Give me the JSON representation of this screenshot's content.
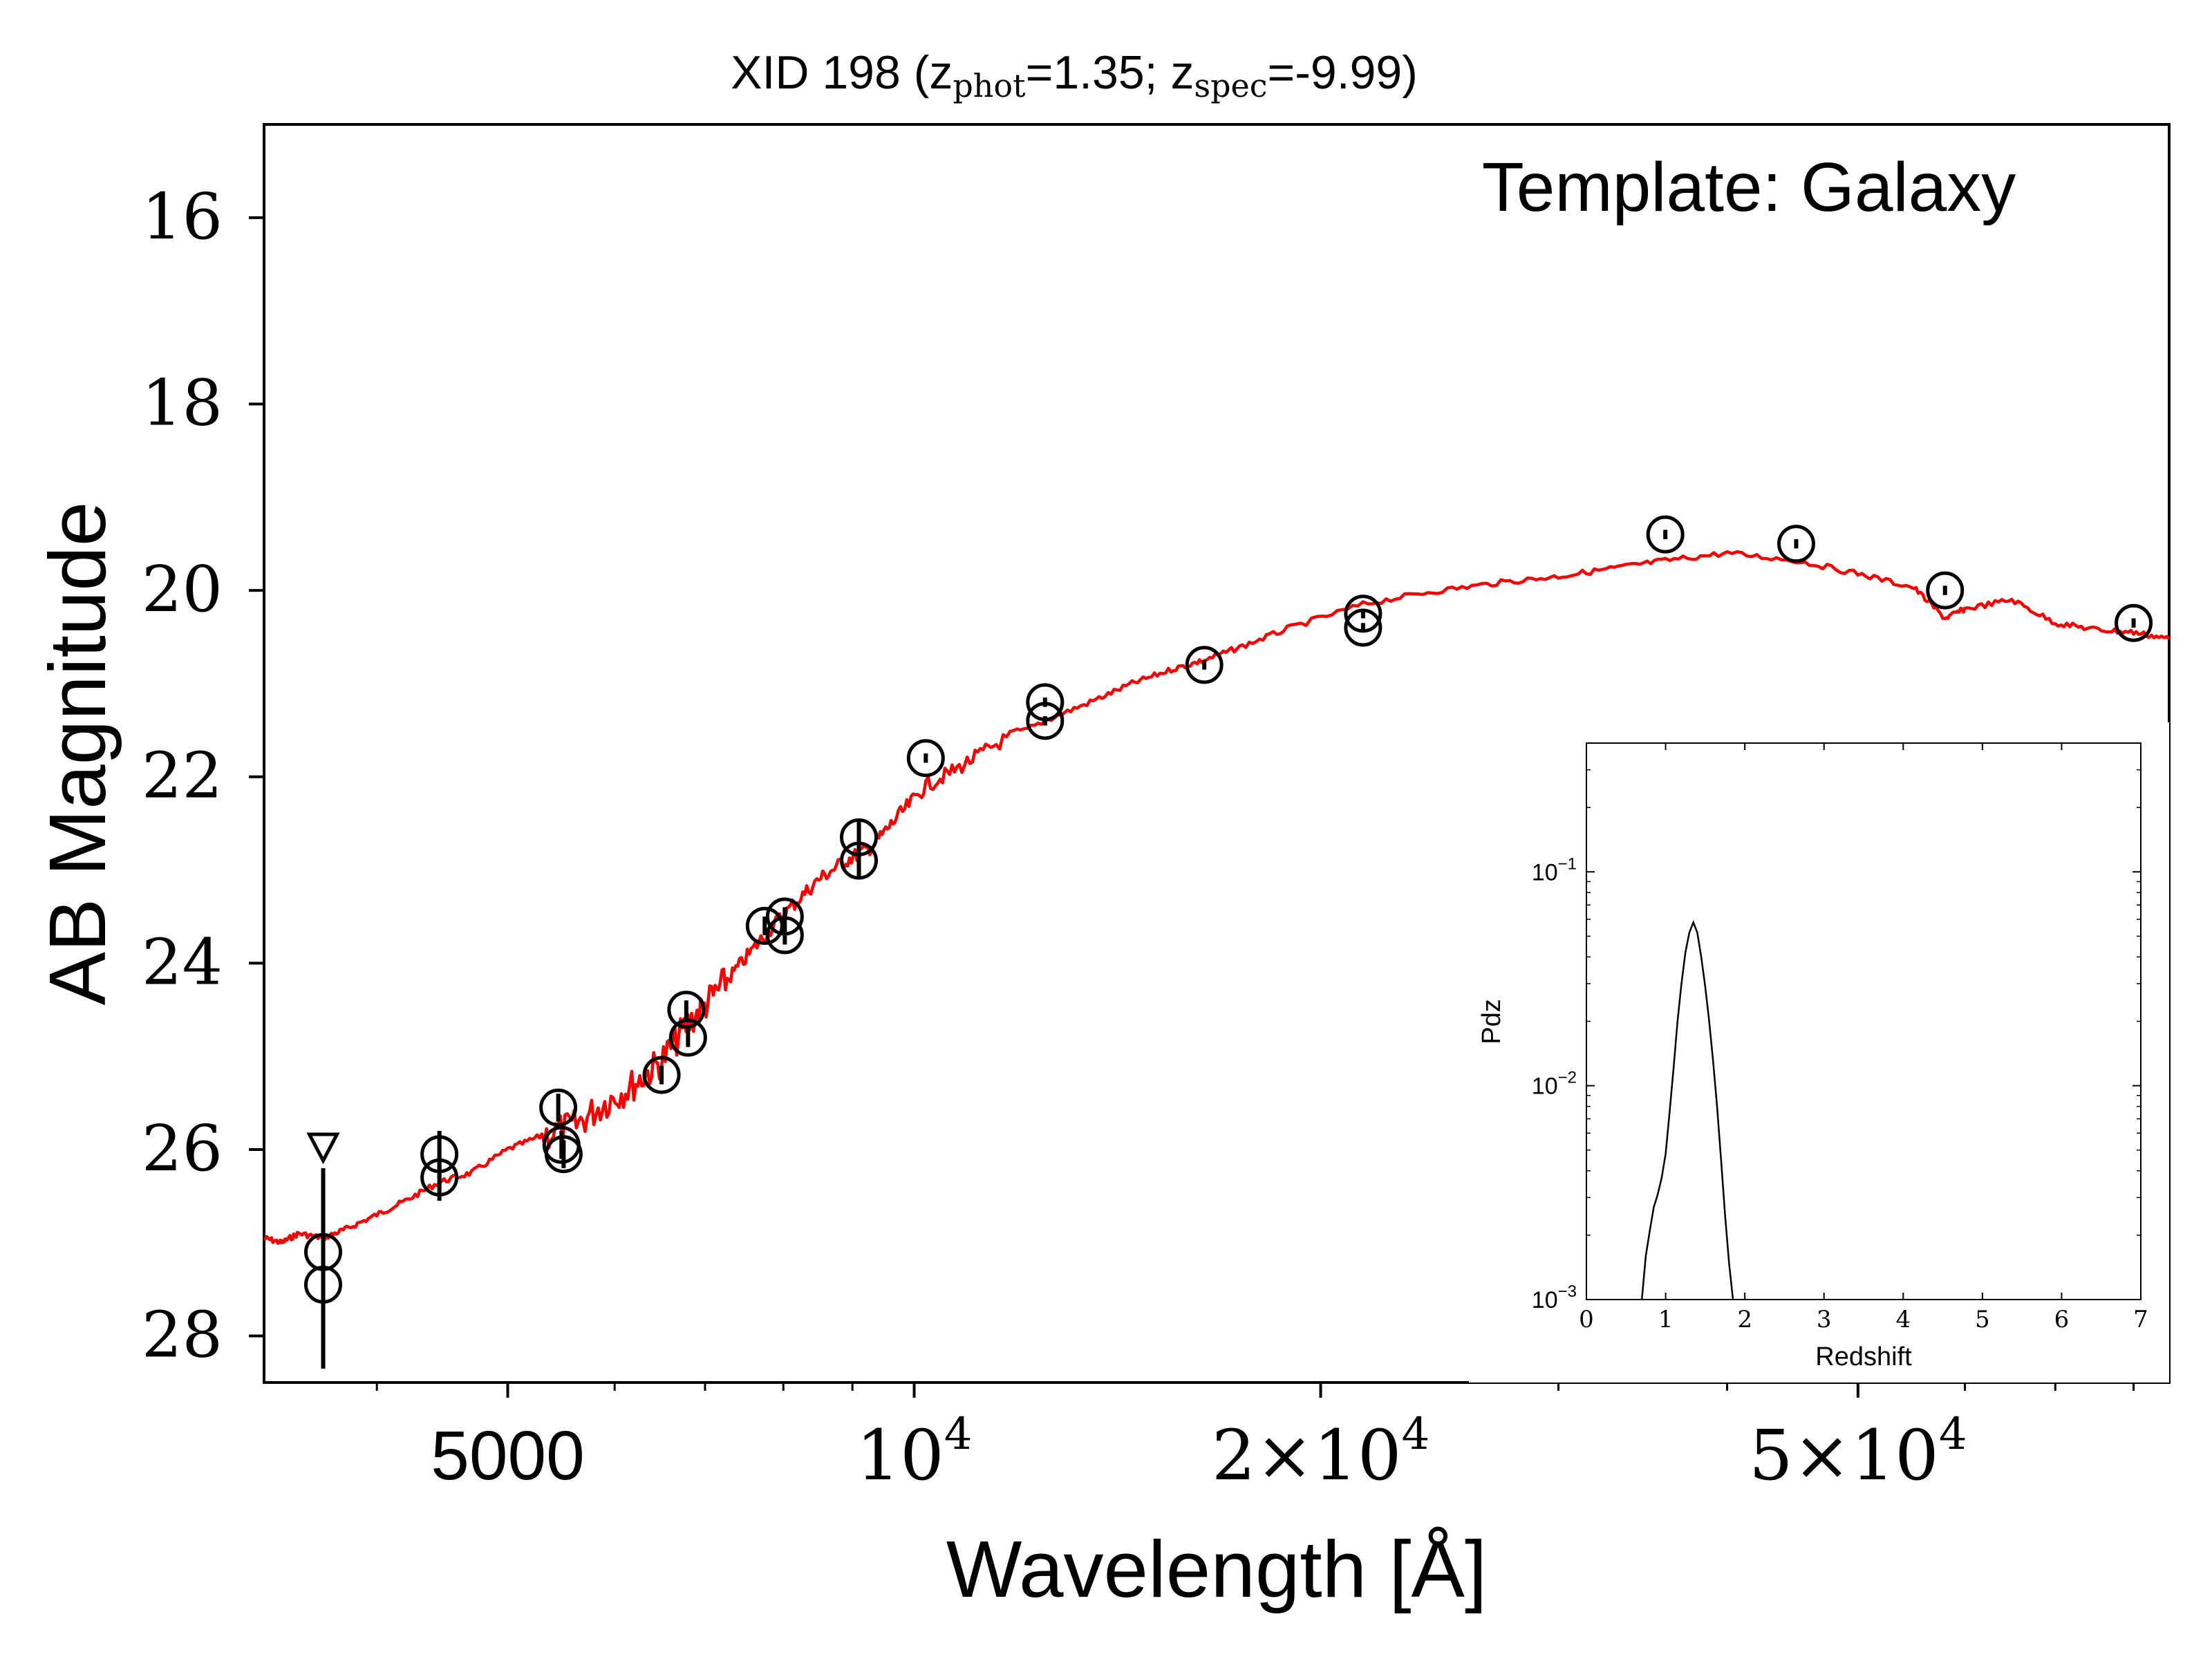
{
  "chart_data": [
    {
      "type": "scatter",
      "title": {
        "prefix": "XID 198 (z",
        "phot_sub": "phot",
        "phot_val": "=1.35; z",
        "spec_sub": "spec",
        "spec_val": "=-9.99)"
      },
      "xlabel": "Wavelength [Å]",
      "ylabel": "AB Magnitude",
      "xscale": "log",
      "xlim": [
        3300,
        85000
      ],
      "ylim": [
        28.5,
        15.0
      ],
      "y_inverted": true,
      "x_ticks": [
        {
          "value": 5000,
          "label": "5000",
          "exp": ""
        },
        {
          "value": 10000,
          "label": "10",
          "exp": "4"
        },
        {
          "value": 20000,
          "label": "2×10",
          "exp": "4"
        },
        {
          "value": 50000,
          "label": "5×10",
          "exp": "4"
        }
      ],
      "y_ticks": [
        {
          "value": 16,
          "label": "16"
        },
        {
          "value": 18,
          "label": "18"
        },
        {
          "value": 20,
          "label": "20"
        },
        {
          "value": 22,
          "label": "22"
        },
        {
          "value": 24,
          "label": "24"
        },
        {
          "value": 26,
          "label": "26"
        },
        {
          "value": 28,
          "label": "28"
        }
      ],
      "annotation": "Template: Galaxy",
      "colors": {
        "model": "#ff0000",
        "points": "#000000"
      },
      "grid": false,
      "photometry": [
        {
          "x": 3650,
          "y": 27.1,
          "err": 0.9
        },
        {
          "x": 3650,
          "y": 27.45,
          "err": 0.9
        },
        {
          "x": 4450,
          "y": 26.05,
          "err": 0.25
        },
        {
          "x": 4450,
          "y": 26.3,
          "err": 0.25
        },
        {
          "x": 5450,
          "y": 25.55,
          "err": 0.15
        },
        {
          "x": 5480,
          "y": 25.95,
          "err": 0.15
        },
        {
          "x": 5500,
          "y": 26.05,
          "err": 0.15
        },
        {
          "x": 6500,
          "y": 25.2,
          "err": 0.1
        },
        {
          "x": 6780,
          "y": 24.5,
          "err": 0.1
        },
        {
          "x": 6800,
          "y": 24.8,
          "err": 0.1
        },
        {
          "x": 7750,
          "y": 23.6,
          "err": 0.1
        },
        {
          "x": 8020,
          "y": 23.5,
          "err": 0.1
        },
        {
          "x": 8020,
          "y": 23.7,
          "err": 0.1
        },
        {
          "x": 9100,
          "y": 22.65,
          "err": 0.2
        },
        {
          "x": 9100,
          "y": 22.9,
          "err": 0.2
        },
        {
          "x": 10200,
          "y": 21.8,
          "err": 0.05
        },
        {
          "x": 12500,
          "y": 21.2,
          "err": 0.05
        },
        {
          "x": 12500,
          "y": 21.4,
          "err": 0.05
        },
        {
          "x": 16400,
          "y": 20.8,
          "err": 0.05
        },
        {
          "x": 21500,
          "y": 20.25,
          "err": 0.05
        },
        {
          "x": 21500,
          "y": 20.4,
          "err": 0.05
        },
        {
          "x": 36000,
          "y": 19.4,
          "err": 0.05
        },
        {
          "x": 45000,
          "y": 19.5,
          "err": 0.05
        },
        {
          "x": 58000,
          "y": 20.0,
          "err": 0.05
        },
        {
          "x": 80000,
          "y": 20.35,
          "err": 0.05
        }
      ],
      "upper_limits": [
        {
          "x": 3650,
          "y": 26.0
        }
      ],
      "model": {
        "name": "",
        "x": [
          3300,
          3400,
          3500,
          3650,
          3800,
          4000,
          4200,
          4450,
          4700,
          5000,
          5300,
          5600,
          5900,
          6200,
          6500,
          6800,
          7100,
          7400,
          7750,
          8100,
          8500,
          8900,
          9300,
          9700,
          10200,
          10800,
          11500,
          12500,
          13500,
          14500,
          15500,
          16400,
          17500,
          19000,
          21500,
          24000,
          27000,
          30000,
          33000,
          36000,
          40000,
          45000,
          50000,
          55000,
          58000,
          60000,
          65000,
          70000,
          75000,
          80000,
          85000
        ],
        "y": [
          26.95,
          27.0,
          26.9,
          26.95,
          26.85,
          26.7,
          26.55,
          26.35,
          26.25,
          26.0,
          25.85,
          25.75,
          25.5,
          25.3,
          25.05,
          24.65,
          24.35,
          24.05,
          23.7,
          23.4,
          23.1,
          22.9,
          22.75,
          22.45,
          22.1,
          21.9,
          21.65,
          21.4,
          21.2,
          21.0,
          20.85,
          20.75,
          20.6,
          20.4,
          20.15,
          20.02,
          19.92,
          19.85,
          19.76,
          19.68,
          19.6,
          19.68,
          19.82,
          19.97,
          20.3,
          20.2,
          20.1,
          20.35,
          20.42,
          20.45,
          20.52
        ]
      }
    },
    {
      "type": "line",
      "title": "",
      "xlabel": "Redshift",
      "ylabel": "Pdz",
      "yscale": "log",
      "xlim": [
        0,
        7
      ],
      "ylim": [
        0.001,
        0.4
      ],
      "x_ticks": [
        "0",
        "1",
        "2",
        "3",
        "4",
        "5",
        "6",
        "7"
      ],
      "y_ticks": [
        {
          "value": 0.1,
          "label": "10",
          "exp": "−1"
        },
        {
          "value": 0.01,
          "label": "10",
          "exp": "−2"
        },
        {
          "value": 0.001,
          "label": "10",
          "exp": "−3"
        }
      ],
      "series": [
        {
          "x": [
            0.7,
            0.75,
            0.8,
            0.85,
            0.9,
            0.95,
            1.0,
            1.05,
            1.1,
            1.15,
            1.2,
            1.25,
            1.3,
            1.35,
            1.4,
            1.45,
            1.5,
            1.55,
            1.6,
            1.65,
            1.7,
            1.75,
            1.8,
            1.85
          ],
          "y": [
            0.001,
            0.0016,
            0.0021,
            0.0027,
            0.0031,
            0.0037,
            0.0048,
            0.0075,
            0.012,
            0.02,
            0.03,
            0.042,
            0.052,
            0.058,
            0.052,
            0.04,
            0.029,
            0.02,
            0.013,
            0.008,
            0.0045,
            0.0025,
            0.0015,
            0.001
          ]
        }
      ],
      "color": "#000000"
    }
  ]
}
